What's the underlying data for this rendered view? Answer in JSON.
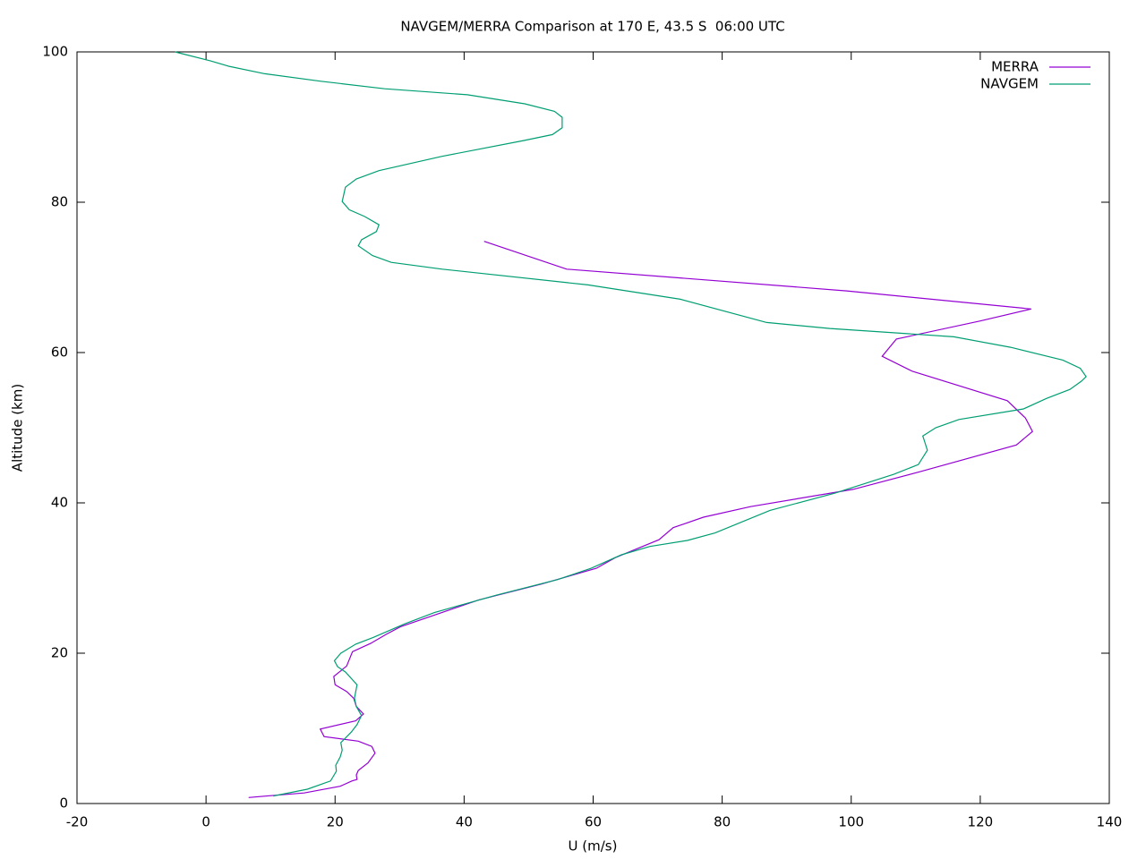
{
  "chart_data": {
    "type": "line",
    "title": "NAVGEM/MERRA Comparison at 170 E, 43.5 S  06:00 UTC",
    "x_label": "U (m/s)",
    "y_label": "Altitude (km)",
    "xlim": [
      -20,
      140
    ],
    "xticks": [
      -20,
      0,
      20,
      40,
      60,
      80,
      100,
      120,
      140
    ],
    "ylim": [
      0,
      100
    ],
    "yticks": [
      0,
      20,
      40,
      60,
      80,
      100
    ],
    "legend": "top-right",
    "grid": false,
    "series": [
      {
        "name": "MERRA",
        "color": "#9400d3",
        "x": [
          6.6,
          10.7,
          15.2,
          20.8,
          22.6,
          23.4,
          23.3,
          23.6,
          25.1,
          26.2,
          25.7,
          23.6,
          18.3,
          17.7,
          23.2,
          24.4,
          23.3,
          22.9,
          21.8,
          20.0,
          19.8,
          20.8,
          21.8,
          22.7,
          25.5,
          27.9,
          30.1,
          42.3,
          52.0,
          60.5,
          63.4,
          70.2,
          72.4,
          77.1,
          84.4,
          100.3,
          110.9,
          125.6,
          128.1,
          127.0,
          124.2,
          109.5,
          104.8,
          107.0,
          108.6,
          120.0,
          127.9,
          99.3,
          55.9,
          43.1
        ],
        "y": [
          0.8,
          1.1,
          1.4,
          2.3,
          3.0,
          3.2,
          3.8,
          4.4,
          5.4,
          6.7,
          7.6,
          8.3,
          8.9,
          9.9,
          11.0,
          11.9,
          12.9,
          14.0,
          14.9,
          15.8,
          16.9,
          17.6,
          18.3,
          20.2,
          21.3,
          22.5,
          23.5,
          27.1,
          29.2,
          31.3,
          32.7,
          35.1,
          36.7,
          38.1,
          39.5,
          41.8,
          44.2,
          47.7,
          49.5,
          51.3,
          53.6,
          57.5,
          59.5,
          61.8,
          62.1,
          64.2,
          65.8,
          68.2,
          71.1,
          74.8
        ]
      },
      {
        "name": "NAVGEM",
        "color": "#009e73",
        "x": [
          10.4,
          15.7,
          19.3,
          20.2,
          20.1,
          20.8,
          21.1,
          20.9,
          22.5,
          23.4,
          24.1,
          23.3,
          23.0,
          23.4,
          21.6,
          20.4,
          19.9,
          20.9,
          23.2,
          25.9,
          30.8,
          35.4,
          44.9,
          54.5,
          59.7,
          64.4,
          68.8,
          74.6,
          78.9,
          87.4,
          97.5,
          106.6,
          110.4,
          111.8,
          111.4,
          111.1,
          113.1,
          116.7,
          126.7,
          130.3,
          133.9,
          135.7,
          136.4,
          135.5,
          132.8,
          124.7,
          115.9,
          96.7,
          86.9,
          73.5,
          59.2,
          36.6,
          28.7,
          25.8,
          23.6,
          24.1,
          26.4,
          26.8,
          24.6,
          22.2,
          21.1,
          21.6,
          23.3,
          26.8,
          36.5,
          49.2,
          53.7,
          55.2,
          55.2,
          54.0,
          49.4,
          40.5,
          27.7,
          17.8,
          9.1,
          3.5,
          0.7,
          -4.8
        ],
        "y": [
          1.0,
          1.9,
          3.0,
          4.3,
          5.1,
          6.2,
          7.1,
          8.1,
          9.5,
          10.5,
          11.7,
          12.9,
          14.0,
          15.8,
          17.5,
          18.2,
          19.0,
          20.0,
          21.2,
          22.1,
          23.9,
          25.4,
          27.7,
          29.8,
          31.3,
          33.1,
          34.2,
          35.0,
          36.0,
          39.0,
          41.3,
          43.8,
          45.1,
          47.0,
          48.1,
          48.9,
          50.0,
          51.1,
          52.5,
          53.9,
          55.1,
          56.2,
          56.8,
          57.9,
          59.0,
          60.7,
          62.1,
          63.2,
          64.0,
          67.1,
          69.0,
          71.1,
          72.0,
          72.9,
          74.2,
          75.0,
          76.1,
          77.0,
          78.1,
          79.0,
          80.1,
          82.0,
          83.1,
          84.2,
          86.1,
          88.2,
          89.0,
          89.9,
          91.3,
          92.1,
          93.1,
          94.3,
          95.1,
          96.1,
          97.1,
          98.1,
          98.8,
          100.0
        ]
      }
    ]
  }
}
